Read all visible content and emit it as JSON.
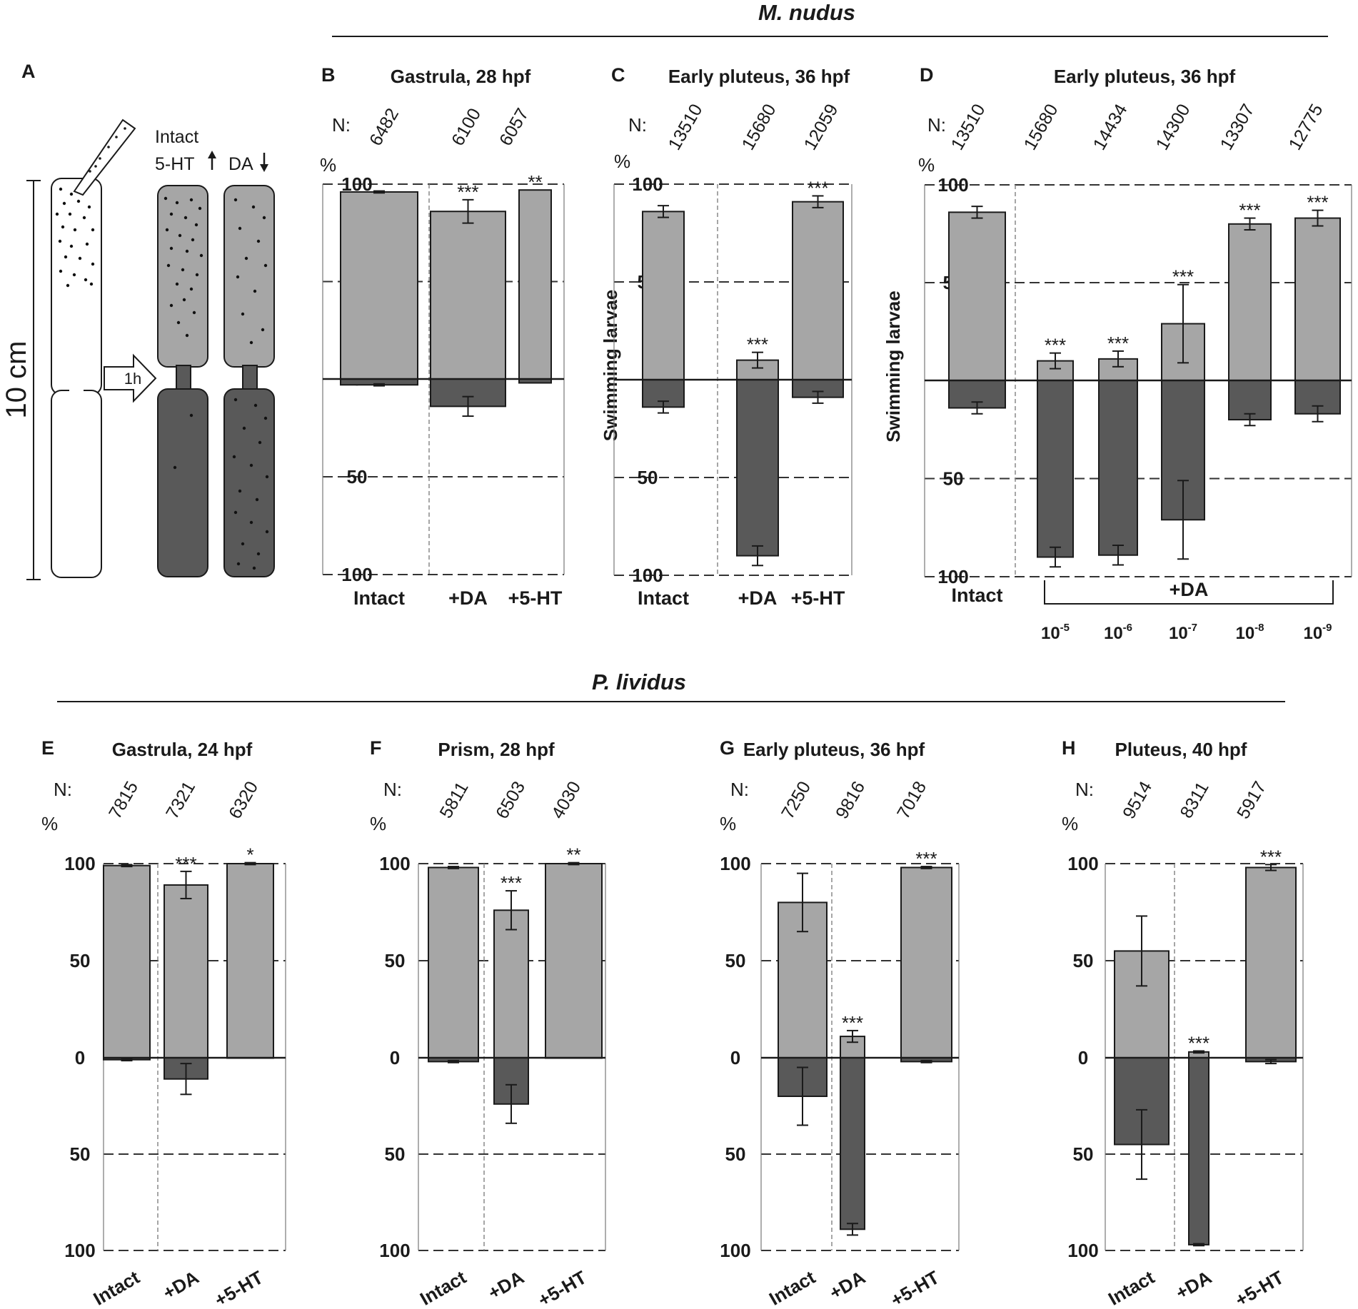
{
  "species": {
    "top": "M. nudus",
    "bottom": "P. lividus"
  },
  "schematic": {
    "panel_letter": "A",
    "scale_label": "10 cm",
    "time_label": "1h",
    "tube_labels": {
      "intact": "Intact",
      "serotonin": "5-HT",
      "dopamine": "DA"
    }
  },
  "labels": {
    "n_prefix": "N:",
    "percent": "%",
    "ylabel": "Swimming larvae",
    "concentration_group": "+DA"
  },
  "colors": {
    "upper_bar": "#a6a6a6",
    "lower_bar": "#595959",
    "frame": "#1a1a1a",
    "dash": "#333333"
  },
  "chart_data": [
    {
      "type": "bar",
      "panel": "B",
      "title": "Gastrula, 28 hpf",
      "ylabel": "",
      "categories": [
        "Intact",
        "+DA",
        "+5-HT"
      ],
      "n": [
        "6482",
        "6100",
        "6057"
      ],
      "ylim_upper": [
        0,
        100
      ],
      "ylim_lower": [
        0,
        100
      ],
      "yticks": [
        "100",
        "50",
        "0",
        "50",
        "100"
      ],
      "series": [
        {
          "name": "Upper (swimming up)",
          "values": [
            96,
            86,
            97
          ],
          "errors": [
            0.5,
            6,
            0
          ]
        },
        {
          "name": "Lower (swimming down)",
          "values": [
            3,
            14,
            2
          ],
          "errors": [
            0.5,
            5,
            0
          ]
        }
      ],
      "significance": [
        "",
        "***",
        "**"
      ]
    },
    {
      "type": "bar",
      "panel": "C",
      "title": "Early pluteus, 36 hpf",
      "ylabel": "Swimming larvae",
      "categories": [
        "Intact",
        "+DA",
        "+5-HT"
      ],
      "n": [
        "13510",
        "15680",
        "12059"
      ],
      "ylim_upper": [
        0,
        100
      ],
      "ylim_lower": [
        0,
        100
      ],
      "yticks": [
        "100",
        "50",
        "0",
        "50",
        "100"
      ],
      "series": [
        {
          "name": "Upper (swimming up)",
          "values": [
            86,
            10,
            91
          ],
          "errors": [
            3,
            4,
            3
          ]
        },
        {
          "name": "Lower (swimming down)",
          "values": [
            14,
            90,
            9
          ],
          "errors": [
            3,
            5,
            3
          ]
        }
      ],
      "significance": [
        "",
        "***",
        "***"
      ]
    },
    {
      "type": "bar",
      "panel": "D",
      "title": "Early pluteus, 36 hpf",
      "ylabel": "Swimming larvae",
      "categories": [
        "Intact",
        "+DA 10-5",
        "+DA 10-6",
        "+DA 10-7",
        "+DA 10-8",
        "+DA 10-9"
      ],
      "x_labels": [
        "Intact"
      ],
      "concentrations": [
        {
          "base": "10",
          "exp": "-5"
        },
        {
          "base": "10",
          "exp": "-6"
        },
        {
          "base": "10",
          "exp": "-7"
        },
        {
          "base": "10",
          "exp": "-8"
        },
        {
          "base": "10",
          "exp": "-9"
        }
      ],
      "n": [
        "13510",
        "15680",
        "14434",
        "14300",
        "13307",
        "12775"
      ],
      "ylim_upper": [
        0,
        100
      ],
      "ylim_lower": [
        0,
        100
      ],
      "yticks": [
        "100",
        "50",
        "0",
        "50",
        "100"
      ],
      "series": [
        {
          "name": "Upper (swimming up)",
          "values": [
            86,
            10,
            11,
            29,
            80,
            83
          ],
          "errors": [
            3,
            4,
            4,
            20,
            3,
            4
          ]
        },
        {
          "name": "Lower (swimming down)",
          "values": [
            14,
            90,
            89,
            71,
            20,
            17
          ],
          "errors": [
            3,
            5,
            5,
            20,
            3,
            4
          ]
        }
      ],
      "significance": [
        "",
        "***",
        "***",
        "***",
        "***",
        "***"
      ]
    },
    {
      "type": "bar",
      "panel": "E",
      "title": "Gastrula, 24 hpf",
      "ylabel": "",
      "categories": [
        "Intact",
        "+DA",
        "+5-HT"
      ],
      "n": [
        "7815",
        "7321",
        "6320"
      ],
      "ylim_upper": [
        0,
        100
      ],
      "ylim_lower": [
        0,
        100
      ],
      "yticks": [
        "100",
        "50",
        "0",
        "50",
        "100"
      ],
      "series": [
        {
          "name": "Upper (swimming up)",
          "values": [
            99,
            89,
            100
          ],
          "errors": [
            0.5,
            7,
            0.5
          ]
        },
        {
          "name": "Lower (swimming down)",
          "values": [
            1,
            11,
            0
          ],
          "errors": [
            0.5,
            8,
            0
          ]
        }
      ],
      "significance": [
        "",
        "***",
        "*"
      ]
    },
    {
      "type": "bar",
      "panel": "F",
      "title": "Prism, 28 hpf",
      "ylabel": "",
      "categories": [
        "Intact",
        "+DA",
        "+5-HT"
      ],
      "n": [
        "5811",
        "6503",
        "4030"
      ],
      "ylim_upper": [
        0,
        100
      ],
      "ylim_lower": [
        0,
        100
      ],
      "yticks": [
        "100",
        "50",
        "0",
        "50",
        "100"
      ],
      "series": [
        {
          "name": "Upper (swimming up)",
          "values": [
            98,
            76,
            100
          ],
          "errors": [
            0.5,
            10,
            0.5
          ]
        },
        {
          "name": "Lower (swimming down)",
          "values": [
            2,
            24,
            0
          ],
          "errors": [
            0.5,
            10,
            0
          ]
        }
      ],
      "significance": [
        "",
        "***",
        "**"
      ]
    },
    {
      "type": "bar",
      "panel": "G",
      "title": "Early pluteus, 36 hpf",
      "ylabel": "",
      "categories": [
        "Intact",
        "+DA",
        "+5-HT"
      ],
      "n": [
        "7250",
        "9816",
        "7018"
      ],
      "ylim_upper": [
        0,
        100
      ],
      "ylim_lower": [
        0,
        100
      ],
      "yticks": [
        "100",
        "50",
        "0",
        "50",
        "100"
      ],
      "series": [
        {
          "name": "Upper (swimming up)",
          "values": [
            80,
            11,
            98
          ],
          "errors": [
            15,
            3,
            0.5
          ]
        },
        {
          "name": "Lower (swimming down)",
          "values": [
            20,
            89,
            2
          ],
          "errors": [
            15,
            3,
            0.5
          ]
        }
      ],
      "significance": [
        "",
        "***",
        "***"
      ]
    },
    {
      "type": "bar",
      "panel": "H",
      "title": "Pluteus, 40 hpf",
      "ylabel": "",
      "categories": [
        "Intact",
        "+DA",
        "+5-HT"
      ],
      "n": [
        "9514",
        "8311",
        "5917"
      ],
      "ylim_upper": [
        0,
        100
      ],
      "ylim_lower": [
        0,
        100
      ],
      "yticks": [
        "100",
        "50",
        "0",
        "50",
        "100"
      ],
      "series": [
        {
          "name": "Upper (swimming up)",
          "values": [
            55,
            3,
            98
          ],
          "errors": [
            18,
            0.5,
            1.5
          ]
        },
        {
          "name": "Lower (swimming down)",
          "values": [
            45,
            97,
            2
          ],
          "errors": [
            18,
            0.5,
            1
          ]
        }
      ],
      "significance": [
        "",
        "***",
        "***"
      ]
    }
  ]
}
